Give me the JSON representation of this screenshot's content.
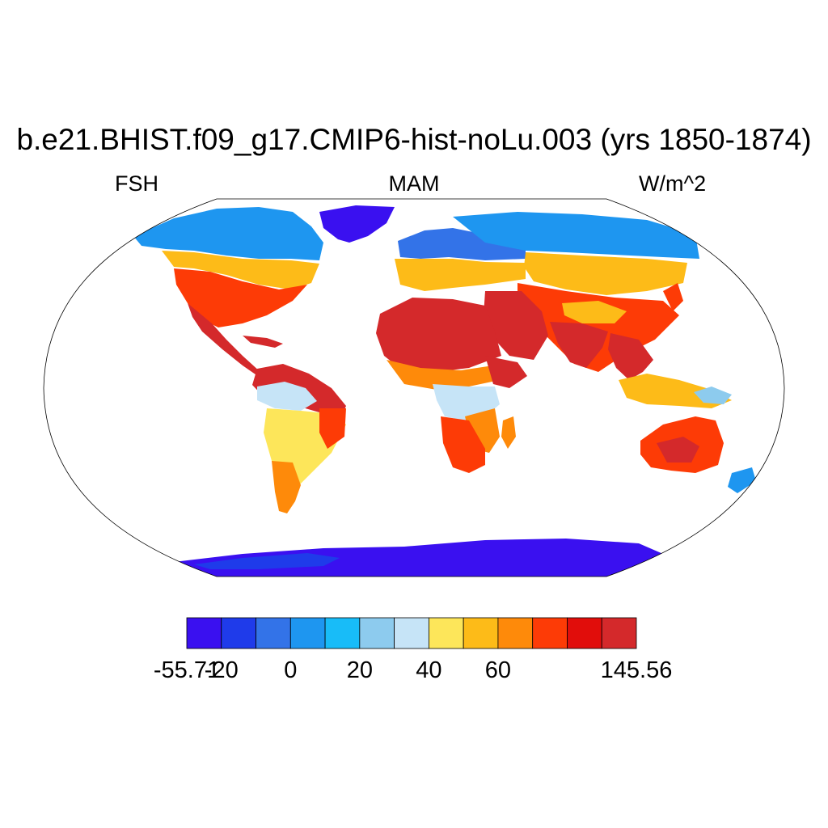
{
  "title": "b.e21.BHIST.f09_g17.CMIP6-hist-noLu.003 (yrs 1850-1874)",
  "left_subtitle": "FSH",
  "center_subtitle": "MAM",
  "right_subtitle": "W/m^2",
  "colorbar": {
    "colors": [
      "#3a10f0",
      "#1f3bea",
      "#3373e8",
      "#1e96f0",
      "#18bcf8",
      "#8dcbee",
      "#c6e4f7",
      "#fde65a",
      "#fdbb18",
      "#fe8a0a",
      "#fd3b06",
      "#e10d0b",
      "#d4292b"
    ],
    "tick_labels": [
      "-55.71",
      "-20",
      "0",
      "20",
      "40",
      "60",
      "145.56"
    ]
  },
  "chart_data": {
    "type": "heatmap",
    "variable": "FSH",
    "season": "MAM",
    "units": "W/m^2",
    "range": [
      -55.71,
      145.56
    ],
    "colorbar_ticks": [
      -55.71,
      -20,
      0,
      20,
      40,
      60,
      145.56
    ]
  }
}
